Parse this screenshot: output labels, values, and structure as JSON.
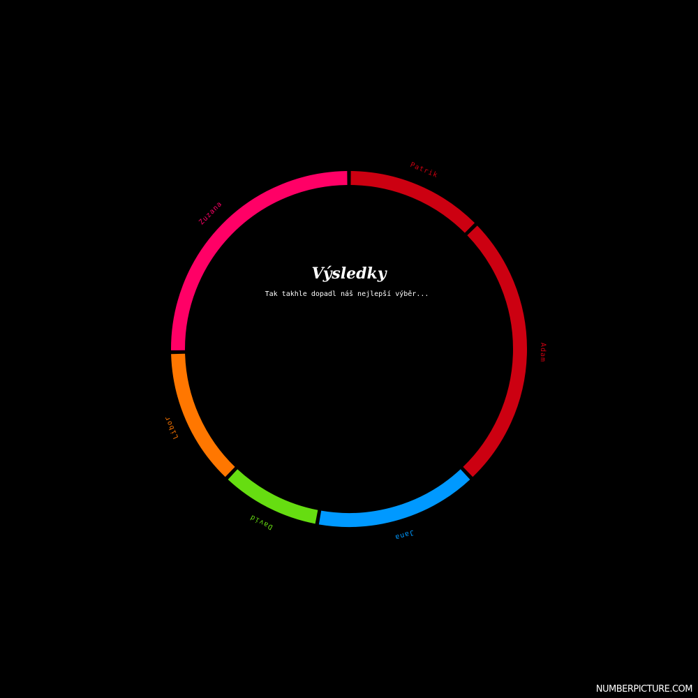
{
  "chart_data": {
    "type": "pie",
    "style": "ring",
    "title": "Výsledky",
    "subtitle": "Tak takhle dopadl náš nejlepší výběr...",
    "slices": [
      {
        "label": "Patrik",
        "value": 11,
        "color": "#cc0011"
      },
      {
        "label": "Adam",
        "value": 22,
        "color": "#cc0011"
      },
      {
        "label": "Jana",
        "value": 13,
        "color": "#0099ff"
      },
      {
        "label": "David",
        "value": 8,
        "color": "#66dd11"
      },
      {
        "label": "Libor",
        "value": 11,
        "color": "#ff7700"
      },
      {
        "label": "Zuzana",
        "value": 22,
        "color": "#ff0066"
      }
    ],
    "start_angle_deg": 90,
    "background": "#000000"
  },
  "watermark": "NUMBERPICTURE.COM"
}
